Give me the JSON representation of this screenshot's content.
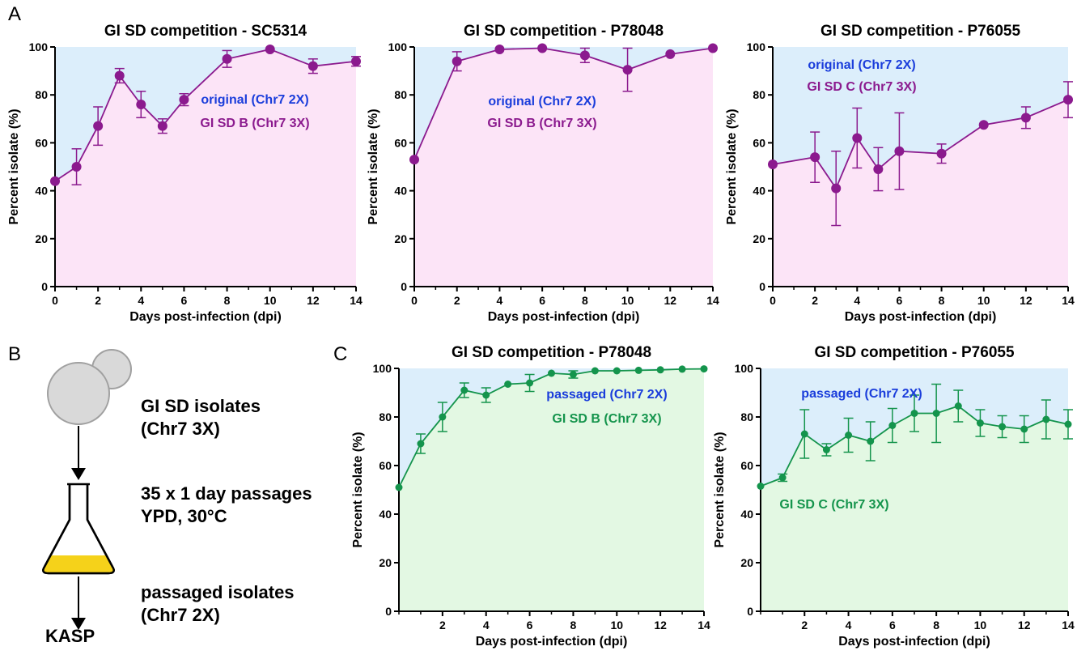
{
  "panels": {
    "a": "A",
    "b": "B",
    "c": "C"
  },
  "colors": {
    "purple": "#8B1A8E",
    "green": "#14944C",
    "blue_text": "#1A3DDB",
    "bg_blue": "#DCEEFB",
    "bg_pink": "#FCE4F7",
    "bg_green": "#E3F8E3",
    "medium_yellow": "#F5D21A"
  },
  "diagram": {
    "step1_line1": "GI SD isolates",
    "step1_line2": "(Chr7 3X)",
    "step2_line1": "35 x 1 day passages",
    "step2_line2": "YPD, 30°C",
    "step3_line1": "passaged isolates",
    "step3_line2": "(Chr7 2X)",
    "kasp": "KASP",
    "icons": [
      "yeast-cell-icon",
      "erlenmeyer-flask-icon",
      "arrow-down-icon"
    ]
  },
  "chart_data": [
    {
      "id": "a1",
      "type": "line",
      "title": "GI SD competition - SC5314",
      "xlabel": "Days post-infection (dpi)",
      "ylabel": "Percent isolate (%)",
      "xlim": [
        0,
        14
      ],
      "ylim": [
        0,
        100
      ],
      "xticks": [
        0,
        2,
        4,
        6,
        8,
        10,
        12,
        14
      ],
      "yticks": [
        0,
        20,
        40,
        60,
        80,
        100
      ],
      "color": "purple",
      "background": [
        "bg_blue",
        "bg_pink"
      ],
      "x": [
        0,
        1,
        2,
        3,
        4,
        5,
        6,
        8,
        10,
        12,
        14
      ],
      "y": [
        44,
        50,
        67,
        88,
        76,
        67,
        78,
        95,
        99,
        92,
        94
      ],
      "err": [
        0,
        7.5,
        8,
        3,
        5.5,
        3,
        2.5,
        3.5,
        0,
        3,
        2
      ],
      "legend": [
        {
          "text": "original (Chr7 2X)",
          "color": "blue_text"
        },
        {
          "text": "GI SD B (Chr7 3X)",
          "color": "purple"
        }
      ],
      "legend_pos": "center-right"
    },
    {
      "id": "a2",
      "type": "line",
      "title": "GI SD competition - P78048",
      "xlabel": "Days post-infection (dpi)",
      "ylabel": "Percent isolate (%)",
      "xlim": [
        0,
        14
      ],
      "ylim": [
        0,
        100
      ],
      "xticks": [
        0,
        2,
        4,
        6,
        8,
        10,
        12,
        14
      ],
      "yticks": [
        0,
        20,
        40,
        60,
        80,
        100
      ],
      "color": "purple",
      "background": [
        "bg_blue",
        "bg_pink"
      ],
      "x": [
        0,
        2,
        4,
        6,
        8,
        10,
        12,
        14
      ],
      "y": [
        53,
        94,
        99,
        99.5,
        96.5,
        90.5,
        97,
        99.5
      ],
      "err": [
        0,
        4,
        0,
        0,
        3,
        9,
        0,
        0
      ],
      "legend": [
        {
          "text": "original (Chr7 2X)",
          "color": "blue_text"
        },
        {
          "text": "GI SD B (Chr7 3X)",
          "color": "purple"
        }
      ],
      "legend_pos": "upper-center"
    },
    {
      "id": "a3",
      "type": "line",
      "title": "GI SD competition - P76055",
      "xlabel": "Days post-infection (dpi)",
      "ylabel": "Percent isolate (%)",
      "xlim": [
        0,
        14
      ],
      "ylim": [
        0,
        100
      ],
      "xticks": [
        0,
        2,
        4,
        6,
        8,
        10,
        12,
        14
      ],
      "yticks": [
        0,
        20,
        40,
        60,
        80,
        100
      ],
      "color": "purple",
      "background": [
        "bg_blue",
        "bg_pink"
      ],
      "x": [
        0,
        2,
        3,
        4,
        5,
        6,
        8,
        10,
        12,
        14
      ],
      "y": [
        51,
        54,
        41,
        62,
        49,
        56.5,
        55.5,
        67.5,
        70.5,
        78
      ],
      "err": [
        0,
        10.5,
        15.5,
        12.5,
        9,
        16,
        4,
        0,
        4.5,
        7.5
      ],
      "legend": [
        {
          "text": "original (Chr7 2X)",
          "color": "blue_text"
        },
        {
          "text": "GI SD C (Chr7 3X)",
          "color": "purple"
        }
      ],
      "legend_pos": "upper-left"
    },
    {
      "id": "c1",
      "type": "line",
      "title": "GI SD competition - P78048",
      "xlabel": "Days post-infection (dpi)",
      "ylabel": "Percent isolate (%)",
      "xlim": [
        0,
        14
      ],
      "ylim": [
        0,
        100
      ],
      "xticks": [
        2,
        4,
        6,
        8,
        10,
        12,
        14
      ],
      "yticks": [
        0,
        20,
        40,
        60,
        80,
        100
      ],
      "color": "green",
      "background": [
        "bg_blue",
        "bg_green"
      ],
      "x": [
        0,
        1,
        2,
        3,
        4,
        5,
        6,
        7,
        8,
        9,
        10,
        11,
        12,
        13,
        14
      ],
      "y": [
        51,
        69,
        80,
        91,
        89,
        93.5,
        94,
        98,
        97.5,
        99,
        99,
        99.2,
        99.4,
        99.7,
        99.8
      ],
      "err": [
        0,
        4,
        6,
        3,
        3,
        0,
        3.5,
        0,
        1.5,
        0,
        0,
        0,
        0,
        0,
        0
      ],
      "legend": [
        {
          "text": "passaged (Chr7 2X)",
          "color": "blue_text"
        },
        {
          "text": "GI SD B (Chr7 3X)",
          "color": "green"
        }
      ],
      "legend_pos": "center-right"
    },
    {
      "id": "c2",
      "type": "line",
      "title": "GI SD competition - P76055",
      "xlabel": "Days post-infection (dpi)",
      "ylabel": "Percent isolate (%)",
      "xlim": [
        0,
        14
      ],
      "ylim": [
        0,
        100
      ],
      "xticks": [
        2,
        4,
        6,
        8,
        10,
        12,
        14
      ],
      "yticks": [
        0,
        20,
        40,
        60,
        80,
        100
      ],
      "color": "green",
      "background": [
        "bg_blue",
        "bg_green"
      ],
      "x": [
        0,
        1,
        2,
        3,
        4,
        5,
        6,
        7,
        8,
        9,
        10,
        11,
        12,
        13,
        14
      ],
      "y": [
        51.5,
        55,
        73,
        66.5,
        72.5,
        70,
        76.5,
        81.5,
        81.5,
        84.5,
        77.5,
        76,
        75,
        79,
        77
      ],
      "err": [
        0,
        1.5,
        10,
        2.5,
        7,
        8,
        7,
        7.5,
        12,
        6.5,
        5.5,
        4.5,
        5.5,
        8,
        6
      ],
      "legend": [
        {
          "text": "passaged (Chr7 2X)",
          "color": "blue_text"
        },
        {
          "text": "GI SD C (Chr7 3X)",
          "color": "green"
        }
      ],
      "legend_pos": "split"
    }
  ]
}
